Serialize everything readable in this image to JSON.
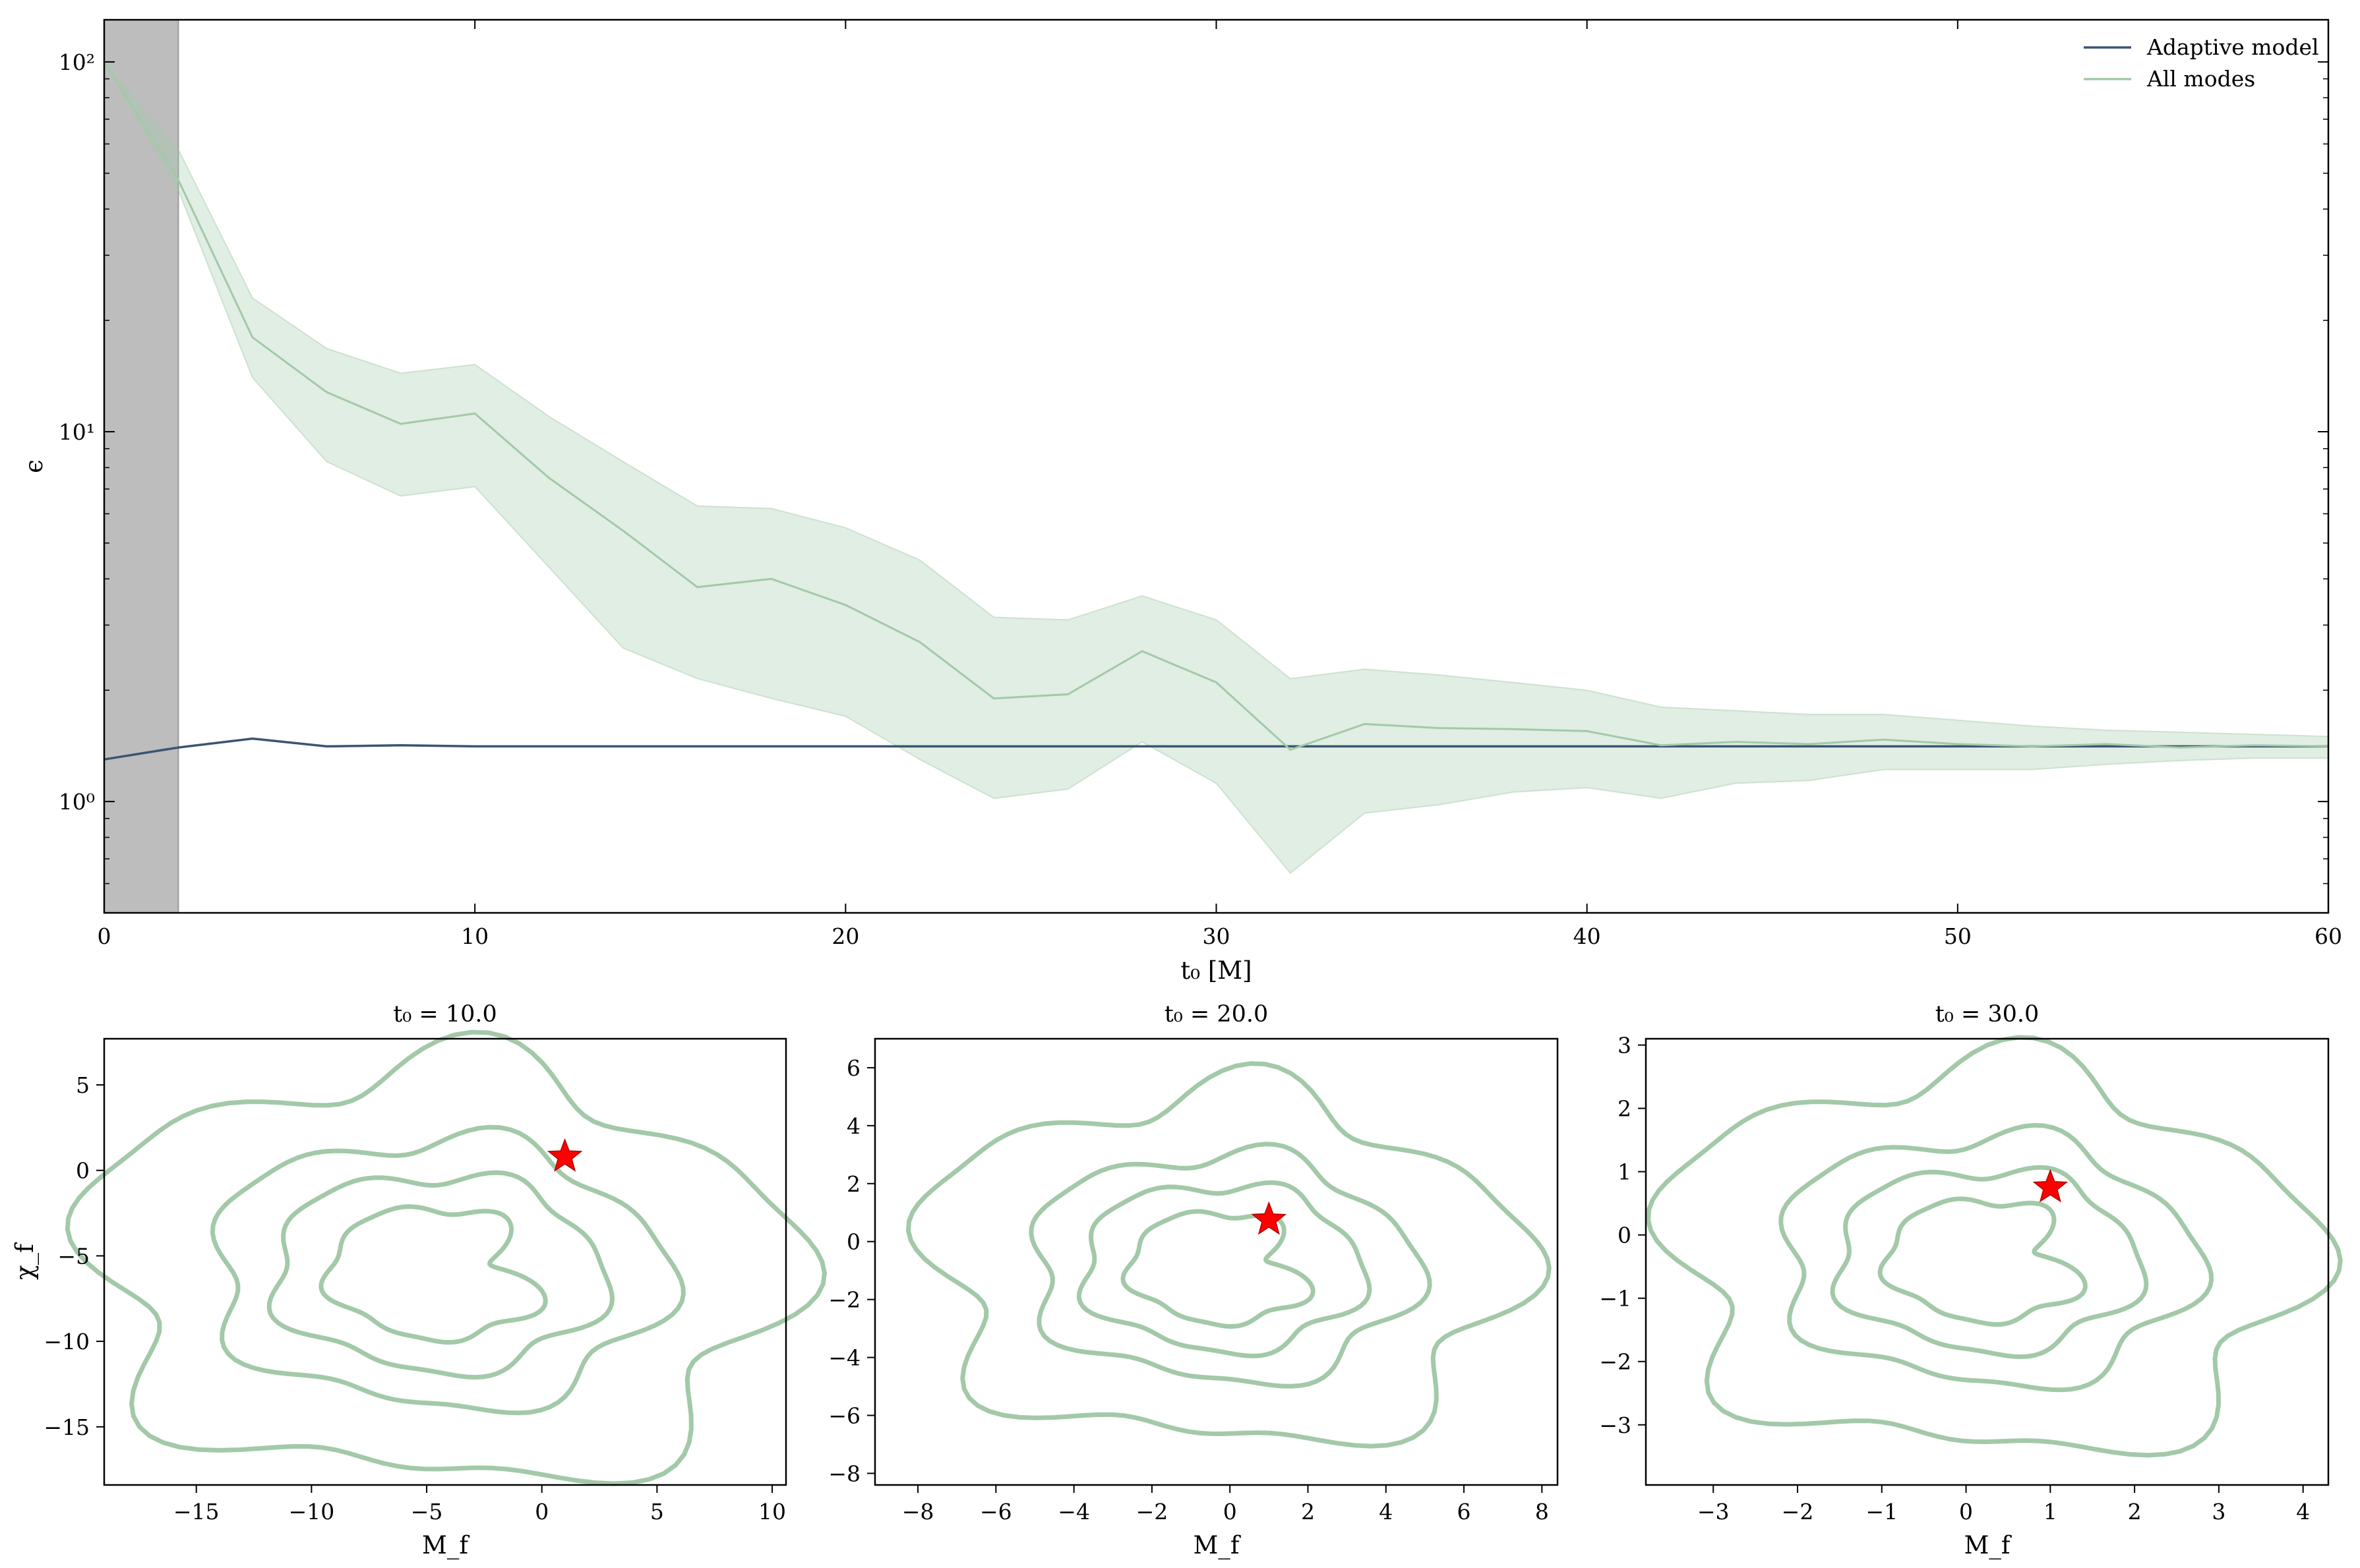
{
  "chart_data": [
    {
      "type": "line",
      "xlabel": "t₀ [M]",
      "ylabel": "ϵ",
      "xlim": [
        0,
        60
      ],
      "ylim": [
        0.5,
        130
      ],
      "yscale": "log",
      "xticks": [
        0,
        10,
        20,
        30,
        40,
        50,
        60
      ],
      "yticks": [
        1,
        10,
        100
      ],
      "ytick_labels": [
        "10⁰",
        "10¹",
        "10²"
      ],
      "grid": false,
      "legend_position": "top-right",
      "shaded_region": {
        "x": [
          0,
          2
        ],
        "color": "#bdbdbd"
      },
      "series": [
        {
          "name": "Adaptive model",
          "color": "#3a5574",
          "x": [
            0,
            2,
            4,
            6,
            8,
            10,
            12,
            14,
            16,
            18,
            20,
            22,
            24,
            26,
            28,
            30,
            32,
            34,
            36,
            38,
            40,
            42,
            44,
            46,
            48,
            50,
            52,
            54,
            56,
            58,
            60
          ],
          "y": [
            1.3,
            1.4,
            1.48,
            1.41,
            1.42,
            1.41,
            1.41,
            1.41,
            1.41,
            1.41,
            1.41,
            1.41,
            1.41,
            1.41,
            1.41,
            1.41,
            1.41,
            1.41,
            1.41,
            1.41,
            1.41,
            1.41,
            1.41,
            1.41,
            1.41,
            1.41,
            1.41,
            1.41,
            1.41,
            1.41,
            1.41
          ]
        },
        {
          "name": "All modes",
          "color": "#a3c9a8",
          "x": [
            0,
            2,
            4,
            6,
            8,
            10,
            12,
            14,
            16,
            18,
            20,
            22,
            24,
            26,
            28,
            30,
            32,
            34,
            36,
            38,
            40,
            42,
            44,
            46,
            48,
            50,
            52,
            54,
            56,
            58,
            60
          ],
          "y": [
            100,
            48,
            18,
            12.8,
            10.5,
            11.2,
            7.5,
            5.4,
            3.8,
            4.0,
            3.4,
            2.7,
            1.9,
            1.95,
            2.55,
            2.1,
            1.38,
            1.62,
            1.58,
            1.57,
            1.55,
            1.42,
            1.45,
            1.43,
            1.47,
            1.43,
            1.41,
            1.43,
            1.4,
            1.42,
            1.41
          ],
          "y_lower": [
            100,
            45,
            14,
            8.3,
            6.7,
            7.1,
            4.3,
            2.6,
            2.15,
            1.9,
            1.7,
            1.3,
            1.02,
            1.08,
            1.45,
            1.12,
            0.64,
            0.93,
            0.98,
            1.06,
            1.09,
            1.02,
            1.12,
            1.14,
            1.22,
            1.22,
            1.22,
            1.26,
            1.29,
            1.31,
            1.31
          ],
          "y_upper": [
            100,
            58,
            23,
            16.8,
            14.4,
            15.2,
            11,
            8.3,
            6.3,
            6.2,
            5.5,
            4.5,
            3.15,
            3.1,
            3.6,
            3.1,
            2.15,
            2.28,
            2.2,
            2.1,
            2.0,
            1.8,
            1.76,
            1.72,
            1.72,
            1.66,
            1.6,
            1.56,
            1.54,
            1.52,
            1.5
          ]
        }
      ]
    },
    {
      "type": "scatter",
      "title": "t₀ = 10.0",
      "xlabel": "M_f",
      "ylabel": "χ_f",
      "xlim": [
        -19,
        10.6
      ],
      "ylim": [
        -18.4,
        7.7
      ],
      "xticks": [
        -15,
        -10,
        -5,
        0,
        5,
        10
      ],
      "yticks": [
        5,
        0,
        -5,
        -10,
        -15
      ],
      "grid": false,
      "contour_center": [
        -4.5,
        -6
      ],
      "contour_unit_x": 4.0,
      "contour_unit_y": 4.0,
      "star_point": [
        1,
        0.8
      ],
      "star_color": "#ff0000",
      "contour_color": "#a3c9a8"
    },
    {
      "type": "scatter",
      "title": "t₀ = 20.0",
      "xlabel": "M_f",
      "ylabel": "",
      "xlim": [
        -9.1,
        8.4
      ],
      "ylim": [
        -8.4,
        7.0
      ],
      "xticks": [
        -8,
        -6,
        -4,
        -2,
        0,
        2,
        4,
        6,
        8
      ],
      "yticks": [
        6,
        4,
        2,
        0,
        -2,
        -4,
        -6,
        -8
      ],
      "grid": false,
      "contour_center": [
        -0.2,
        -0.9
      ],
      "contour_unit_x": 2.0,
      "contour_unit_y": 2.0,
      "star_point": [
        1,
        0.75
      ],
      "star_color": "#ff0000",
      "contour_color": "#a3c9a8"
    },
    {
      "type": "scatter",
      "title": "t₀ = 30.0",
      "xlabel": "M_f",
      "ylabel": "",
      "xlim": [
        -3.8,
        4.3
      ],
      "ylim": [
        -3.95,
        3.1
      ],
      "xticks": [
        -3,
        -2,
        -1,
        0,
        1,
        2,
        3,
        4
      ],
      "yticks": [
        3,
        2,
        1,
        0,
        -1,
        -2,
        -3
      ],
      "grid": false,
      "contour_center": [
        0.25,
        -0.4
      ],
      "contour_unit_x": 1.0,
      "contour_unit_y": 1.0,
      "star_point": [
        1,
        0.75
      ],
      "star_color": "#ff0000",
      "contour_color": "#a3c9a8"
    }
  ]
}
